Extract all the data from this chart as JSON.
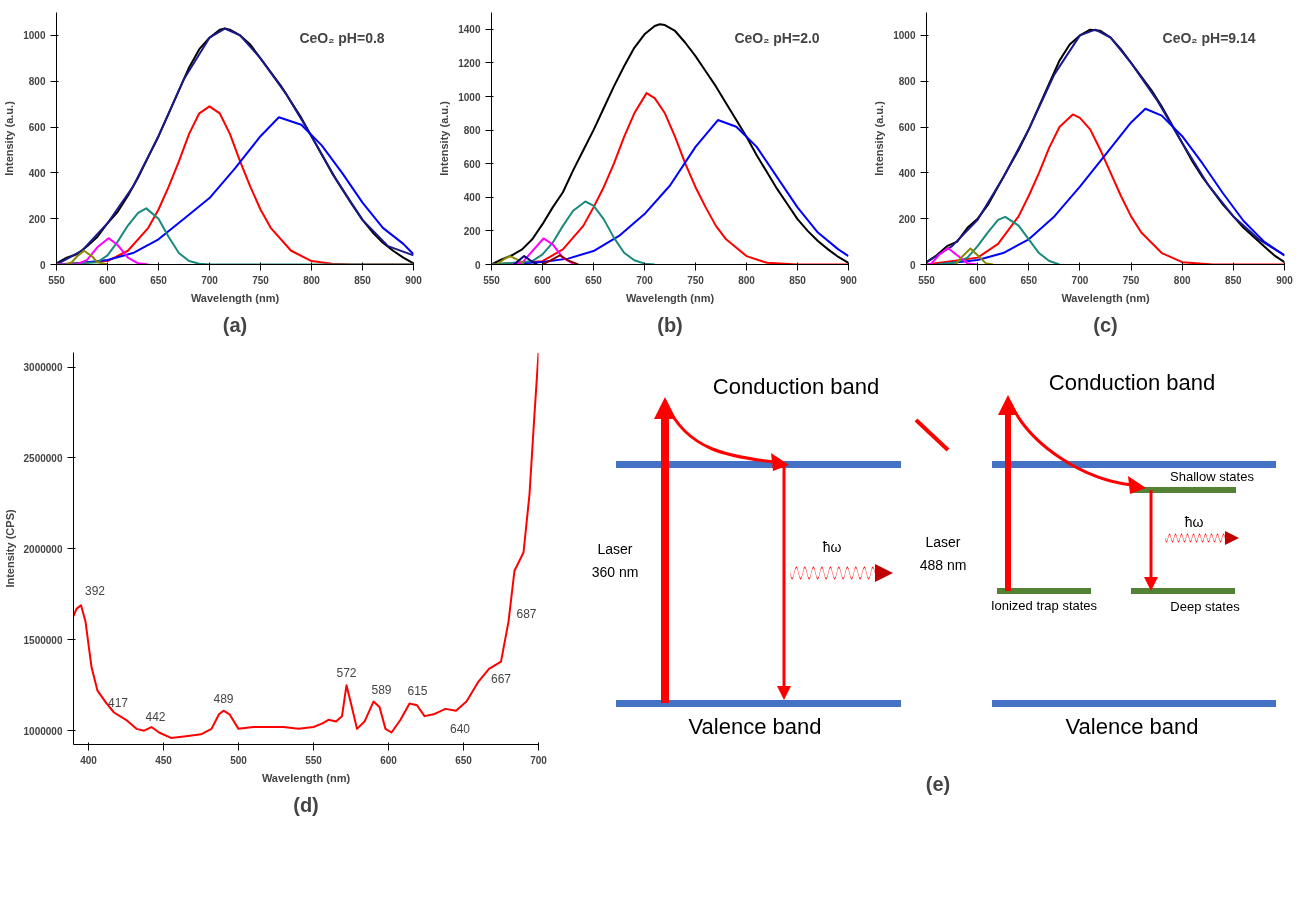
{
  "chart_data": [
    {
      "type": "line",
      "title": "(a)",
      "xlabel": "Wavelength (nm)",
      "ylabel": "Intensity (a.u.)",
      "annotations": [
        "CeO₂  pH=0.8"
      ],
      "xlim": [
        550,
        900
      ],
      "xticks": [
        550,
        600,
        650,
        700,
        750,
        800,
        850,
        900
      ],
      "ylim": [
        0,
        1100
      ],
      "yticks": [
        0,
        200,
        400,
        600,
        800,
        1000
      ],
      "grid": false,
      "series": [
        {
          "color": "#000000",
          "x": [
            550,
            560,
            570,
            580,
            590,
            600,
            610,
            620,
            630,
            640,
            650,
            660,
            670,
            680,
            690,
            700,
            710,
            715,
            720,
            730,
            740,
            750,
            760,
            770,
            780,
            790,
            800,
            810,
            820,
            830,
            840,
            850,
            860,
            870,
            880,
            890,
            900
          ],
          "values": [
            5,
            30,
            45,
            80,
            120,
            180,
            230,
            300,
            380,
            470,
            560,
            660,
            760,
            860,
            940,
            990,
            1025,
            1030,
            1025,
            1000,
            960,
            900,
            840,
            780,
            710,
            640,
            560,
            480,
            400,
            330,
            260,
            195,
            140,
            95,
            60,
            30,
            5
          ]
        },
        {
          "color": "#1a1a8c",
          "x": [
            550,
            575,
            600,
            625,
            650,
            675,
            700,
            715,
            730,
            750,
            775,
            800,
            825,
            850,
            875,
            900
          ],
          "values": [
            0,
            60,
            180,
            340,
            560,
            810,
            990,
            1030,
            1000,
            900,
            745,
            560,
            365,
            195,
            80,
            40
          ]
        },
        {
          "color": "#ff0000",
          "x": [
            550,
            600,
            620,
            640,
            650,
            660,
            670,
            680,
            690,
            700,
            710,
            720,
            730,
            740,
            750,
            760,
            780,
            800,
            820,
            840,
            900
          ],
          "values": [
            0,
            15,
            60,
            160,
            240,
            340,
            450,
            570,
            660,
            690,
            660,
            570,
            450,
            340,
            240,
            160,
            60,
            15,
            3,
            0,
            0
          ]
        },
        {
          "color": "#0000ff",
          "x": [
            560,
            600,
            625,
            650,
            675,
            700,
            725,
            750,
            768,
            790,
            810,
            830,
            850,
            870,
            890,
            900
          ],
          "values": [
            0,
            20,
            50,
            110,
            200,
            290,
            420,
            560,
            643,
            610,
            520,
            400,
            270,
            160,
            90,
            45
          ]
        },
        {
          "color": "#1a8a7a",
          "x": [
            550,
            590,
            600,
            610,
            620,
            630,
            638,
            650,
            660,
            670,
            680,
            690,
            700,
            900
          ],
          "values": [
            0,
            10,
            40,
            100,
            170,
            225,
            245,
            200,
            120,
            50,
            15,
            3,
            0,
            0
          ]
        },
        {
          "color": "#ff00ff",
          "x": [
            550,
            570,
            580,
            590,
            601,
            610,
            620,
            630,
            640
          ],
          "values": [
            0,
            0,
            20,
            75,
            115,
            85,
            30,
            5,
            0
          ]
        },
        {
          "color": "#8a8a00",
          "x": [
            560,
            565,
            570,
            577,
            585,
            590,
            600
          ],
          "values": [
            0,
            10,
            35,
            60,
            35,
            10,
            0
          ]
        }
      ]
    },
    {
      "type": "line",
      "title": "(b)",
      "xlabel": "Wavelength (nm)",
      "ylabel": "Intensity (a.u.)",
      "annotations": [
        "CeO₂  pH=2.0"
      ],
      "xlim": [
        550,
        900
      ],
      "xticks": [
        550,
        600,
        650,
        700,
        750,
        800,
        850,
        900
      ],
      "ylim": [
        0,
        1500
      ],
      "yticks": [
        0,
        200,
        400,
        600,
        800,
        1000,
        1200,
        1400
      ],
      "grid": false,
      "series": [
        {
          "color": "#000000",
          "x": [
            550,
            560,
            570,
            580,
            590,
            600,
            610,
            620,
            630,
            640,
            650,
            660,
            670,
            680,
            690,
            700,
            710,
            715,
            720,
            730,
            740,
            750,
            760,
            770,
            780,
            790,
            800,
            810,
            820,
            830,
            840,
            850,
            860,
            870,
            880,
            890,
            900
          ],
          "values": [
            0,
            30,
            55,
            90,
            150,
            240,
            340,
            430,
            560,
            680,
            800,
            930,
            1060,
            1180,
            1290,
            1370,
            1420,
            1430,
            1425,
            1390,
            1320,
            1240,
            1150,
            1060,
            960,
            860,
            760,
            650,
            550,
            450,
            360,
            270,
            200,
            140,
            90,
            45,
            10
          ]
        },
        {
          "color": "#ff0000",
          "x": [
            550,
            600,
            620,
            640,
            650,
            660,
            670,
            680,
            690,
            702,
            710,
            720,
            730,
            740,
            750,
            760,
            770,
            780,
            800,
            820,
            850,
            900
          ],
          "values": [
            0,
            20,
            90,
            230,
            340,
            460,
            600,
            760,
            900,
            1020,
            990,
            900,
            760,
            600,
            460,
            340,
            230,
            150,
            50,
            10,
            0,
            0
          ]
        },
        {
          "color": "#0000ff",
          "x": [
            560,
            600,
            625,
            650,
            675,
            700,
            725,
            750,
            772,
            790,
            810,
            830,
            850,
            870,
            890,
            900
          ],
          "values": [
            0,
            15,
            35,
            80,
            170,
            300,
            470,
            700,
            860,
            820,
            700,
            520,
            340,
            190,
            90,
            50
          ]
        },
        {
          "color": "#1a8a7a",
          "x": [
            550,
            590,
            600,
            610,
            620,
            630,
            642,
            650,
            660,
            670,
            680,
            690,
            700,
            710
          ],
          "values": [
            0,
            20,
            60,
            130,
            230,
            320,
            375,
            350,
            270,
            160,
            70,
            25,
            5,
            0
          ]
        },
        {
          "color": "#ff00ff",
          "x": [
            570,
            580,
            590,
            601,
            610,
            620,
            630
          ],
          "values": [
            0,
            10,
            80,
            155,
            120,
            40,
            5
          ]
        },
        {
          "color": "#8a8a00",
          "x": [
            555,
            562,
            568,
            575,
            582
          ],
          "values": [
            0,
            30,
            50,
            30,
            5
          ]
        },
        {
          "color": "#000080",
          "x": [
            572,
            577,
            582,
            588,
            595
          ],
          "values": [
            0,
            25,
            50,
            25,
            0
          ]
        },
        {
          "color": "#8b0000",
          "x": [
            600,
            608,
            617,
            625,
            635
          ],
          "values": [
            0,
            25,
            55,
            25,
            0
          ]
        }
      ]
    },
    {
      "type": "line",
      "title": "(c)",
      "xlabel": "Wavelength (nm)",
      "ylabel": "Intensity (a.u.)",
      "annotations": [
        "CeO₂  pH=9.14"
      ],
      "xlim": [
        550,
        900
      ],
      "xticks": [
        550,
        600,
        650,
        700,
        750,
        800,
        850,
        900
      ],
      "ylim": [
        0,
        1100
      ],
      "yticks": [
        0,
        200,
        400,
        600,
        800,
        1000
      ],
      "grid": false,
      "series": [
        {
          "color": "#000000",
          "x": [
            550,
            560,
            570,
            580,
            590,
            600,
            610,
            620,
            630,
            640,
            650,
            660,
            670,
            680,
            690,
            700,
            710,
            720,
            730,
            740,
            750,
            760,
            770,
            780,
            790,
            800,
            810,
            820,
            830,
            840,
            850,
            860,
            870,
            880,
            890,
            900
          ],
          "values": [
            10,
            40,
            80,
            100,
            160,
            200,
            260,
            340,
            420,
            500,
            590,
            690,
            790,
            890,
            960,
            1000,
            1025,
            1020,
            990,
            940,
            880,
            820,
            760,
            690,
            610,
            530,
            450,
            380,
            320,
            260,
            210,
            160,
            120,
            80,
            40,
            10
          ]
        },
        {
          "color": "#1a1a8c",
          "x": [
            550,
            575,
            600,
            625,
            650,
            675,
            700,
            715,
            730,
            750,
            775,
            800,
            825,
            850,
            875,
            900
          ],
          "values": [
            10,
            80,
            195,
            380,
            590,
            830,
            1000,
            1025,
            990,
            880,
            720,
            530,
            350,
            210,
            110,
            40
          ]
        },
        {
          "color": "#ff0000",
          "x": [
            550,
            600,
            620,
            640,
            650,
            660,
            670,
            680,
            693,
            700,
            710,
            720,
            730,
            740,
            750,
            760,
            780,
            800,
            830,
            900
          ],
          "values": [
            0,
            30,
            90,
            210,
            300,
            400,
            510,
            600,
            655,
            640,
            590,
            500,
            400,
            300,
            210,
            140,
            50,
            10,
            0,
            0
          ]
        },
        {
          "color": "#0000ff",
          "x": [
            560,
            600,
            625,
            650,
            675,
            700,
            725,
            750,
            764,
            780,
            800,
            820,
            840,
            860,
            880,
            900
          ],
          "values": [
            0,
            20,
            50,
            110,
            210,
            340,
            480,
            620,
            680,
            650,
            560,
            440,
            310,
            190,
            100,
            40
          ]
        },
        {
          "color": "#1a8a7a",
          "x": [
            560,
            580,
            590,
            600,
            610,
            620,
            627,
            640,
            650,
            660,
            670,
            680
          ],
          "values": [
            0,
            10,
            30,
            80,
            140,
            195,
            208,
            170,
            110,
            50,
            15,
            0
          ]
        },
        {
          "color": "#ff00ff",
          "x": [
            550,
            555,
            563,
            571,
            580,
            590,
            600
          ],
          "values": [
            0,
            5,
            45,
            72,
            40,
            5,
            0
          ]
        },
        {
          "color": "#8a8a00",
          "x": [
            578,
            585,
            593,
            600,
            608,
            615
          ],
          "values": [
            0,
            35,
            70,
            40,
            5,
            0
          ]
        }
      ]
    },
    {
      "type": "line",
      "title": "(d)",
      "xlabel": "Wavelength (nm)",
      "ylabel": "Intensity (CPS)",
      "xlim": [
        390,
        700
      ],
      "xticks": [
        400,
        450,
        500,
        550,
        600,
        650,
        700
      ],
      "ylim": [
        924000,
        3080000
      ],
      "yticks": [
        1000000,
        1500000,
        2000000,
        2500000,
        3000000
      ],
      "grid": false,
      "series": [
        {
          "color": "#ff0000",
          "x": [
            390,
            392,
            395,
            398,
            402,
            406,
            412,
            417,
            425,
            432,
            437,
            442,
            447,
            455,
            465,
            475,
            482,
            487,
            490,
            494,
            500,
            510,
            520,
            530,
            540,
            550,
            556,
            560,
            565,
            569,
            572,
            575,
            579,
            584,
            590,
            594,
            598,
            602,
            608,
            614,
            619,
            624,
            630,
            638,
            645,
            652,
            660,
            667,
            675,
            680,
            684,
            690,
            694,
            697,
            700
          ],
          "values": [
            1630000,
            1670000,
            1690000,
            1600000,
            1350000,
            1220000,
            1150000,
            1100000,
            1060000,
            1010000,
            1000000,
            1020000,
            990000,
            960000,
            970000,
            980000,
            1010000,
            1090000,
            1110000,
            1090000,
            1010000,
            1020000,
            1020000,
            1020000,
            1010000,
            1020000,
            1040000,
            1060000,
            1050000,
            1080000,
            1250000,
            1150000,
            1010000,
            1050000,
            1160000,
            1130000,
            1010000,
            990000,
            1060000,
            1150000,
            1140000,
            1080000,
            1090000,
            1120000,
            1110000,
            1160000,
            1270000,
            1340000,
            1380000,
            1600000,
            1880000,
            1980000,
            2300000,
            2700000,
            3077000
          ]
        }
      ],
      "annotations": [
        {
          "text": "392",
          "x": 395,
          "y": 1690000
        },
        {
          "text": "417",
          "x": 417,
          "y": 1100000
        },
        {
          "text": "442",
          "x": 442,
          "y": 1020000
        },
        {
          "text": "489",
          "x": 490,
          "y": 1110000
        },
        {
          "text": "572",
          "x": 572,
          "y": 1250000
        },
        {
          "text": "589",
          "x": 590,
          "y": 1160000
        },
        {
          "text": "615",
          "x": 614,
          "y": 1150000
        },
        {
          "text": "640",
          "x": 645,
          "y": 1110000
        },
        {
          "text": "667",
          "x": 667,
          "y": 1340000
        },
        {
          "text": "687",
          "x": 680,
          "y": 1600000
        }
      ]
    },
    {
      "type": "other",
      "title": "(e)",
      "annotations": [
        "Conduction band",
        "Valence band",
        "Laser",
        "360 nm",
        "ħω",
        "Conduction band",
        "Valence band",
        "Laser",
        "488 nm",
        "Shallow states",
        "Ionized trap states",
        "Deep states",
        "ħω"
      ]
    }
  ]
}
